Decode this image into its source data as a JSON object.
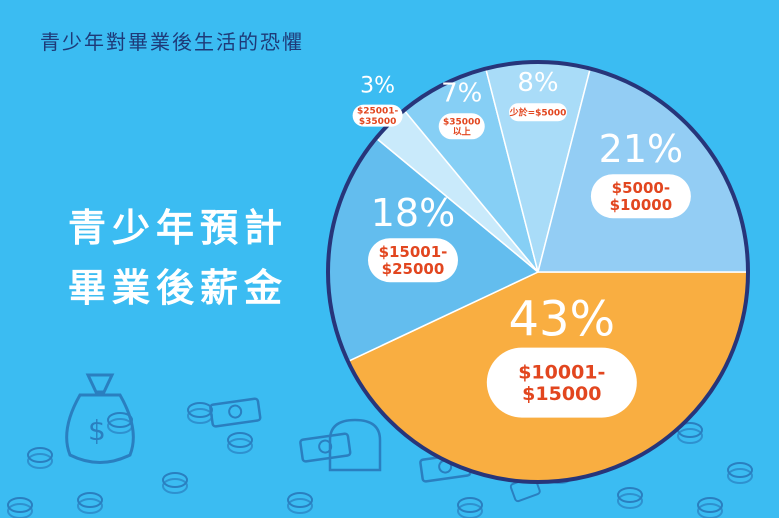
{
  "header": {
    "title": "青少年對畢業後生活的恐懼"
  },
  "chart_data": {
    "type": "pie",
    "title": "青少年預計畢業後薪金",
    "title_lines": [
      "青少年預計",
      "畢業後薪金"
    ],
    "slices": [
      {
        "label": "$10001-\n$15000",
        "value": 43,
        "display": "43%",
        "color": "#f9ae41"
      },
      {
        "label": "$15001-\n$25000",
        "value": 18,
        "display": "18%",
        "color": "#63bdee"
      },
      {
        "label": "$25001-\n$35000",
        "value": 3,
        "display": "3%",
        "color": "#c9eafb"
      },
      {
        "label": "$35000\n以上",
        "value": 7,
        "display": "7%",
        "color": "#86cff5"
      },
      {
        "label": "少於=$5000",
        "value": 8,
        "display": "8%",
        "color": "#a9dcf8"
      },
      {
        "label": "$5000-\n$10000",
        "value": 21,
        "display": "21%",
        "color": "#93cdf4"
      }
    ],
    "start_angle_deg": 0,
    "direction": "clockwise",
    "border_color": "#27357a",
    "label_text_color": "#e2461f"
  }
}
